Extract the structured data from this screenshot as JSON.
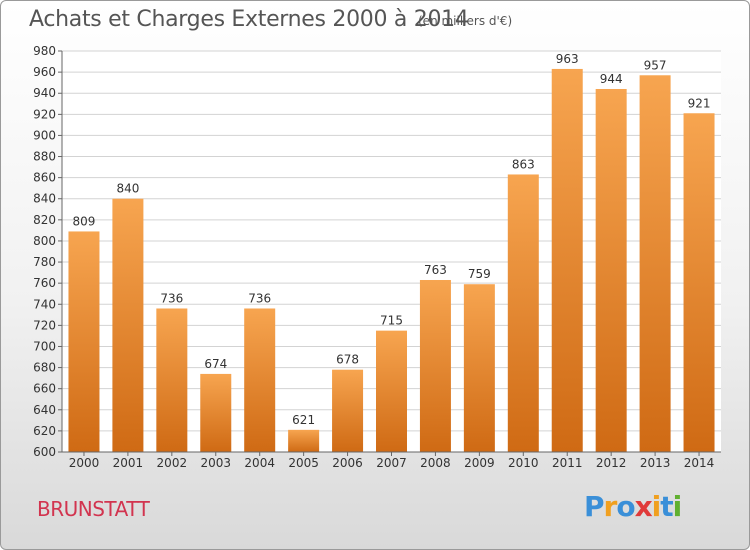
{
  "header": {
    "title": "Achats et Charges Externes 2000 à 2014",
    "subtitle": "(en milliers d'€)"
  },
  "place_label": "BRUNSTATT",
  "brand": {
    "letters": [
      "P",
      "r",
      "o",
      "x",
      "i",
      "t",
      "i"
    ],
    "colors": [
      "#3a8fd8",
      "#f0a020",
      "#3a8fd8",
      "#e03a3a",
      "#f0a020",
      "#3a8fd8",
      "#60b030"
    ]
  },
  "colors": {
    "bar_light": "#f7a550",
    "bar_dark": "#cf6a14",
    "grid": "#d3d3d3",
    "text": "#333333"
  },
  "chart_data": {
    "type": "bar",
    "title": "Achats et Charges Externes 2000 à 2014",
    "categories": [
      "2000",
      "2001",
      "2002",
      "2003",
      "2004",
      "2005",
      "2006",
      "2007",
      "2008",
      "2009",
      "2010",
      "2011",
      "2012",
      "2013",
      "2014"
    ],
    "values": [
      809,
      840,
      736,
      674,
      736,
      621,
      678,
      715,
      763,
      759,
      863,
      963,
      944,
      957,
      921
    ],
    "yticks": [
      600,
      620,
      640,
      660,
      680,
      700,
      720,
      740,
      760,
      780,
      800,
      820,
      840,
      860,
      880,
      900,
      920,
      940,
      960,
      980
    ],
    "ylim": [
      600,
      980
    ],
    "grid": true
  }
}
